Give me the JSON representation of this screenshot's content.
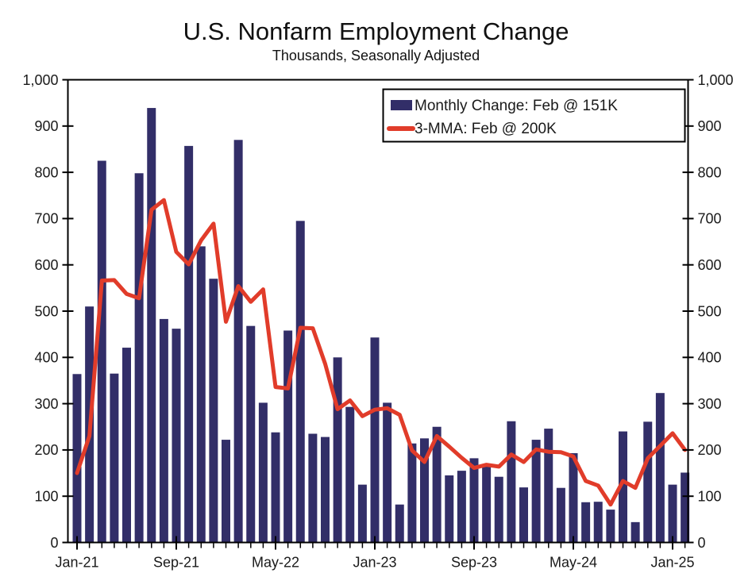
{
  "page": {
    "background": "#ffffff"
  },
  "chart_data": {
    "type": "bar",
    "title": "U.S. Nonfarm Employment Change",
    "subtitle": "Thousands, Seasonally Adjusted",
    "grid": false,
    "legend_position": "top-right",
    "ylim": [
      0,
      1000
    ],
    "y_tick_values": [
      0,
      100,
      200,
      300,
      400,
      500,
      600,
      700,
      800,
      900,
      1000
    ],
    "y_tick_labels": [
      "0",
      "100",
      "200",
      "300",
      "400",
      "500",
      "600",
      "700",
      "800",
      "900",
      "1,000"
    ],
    "x_major_ticks": [
      {
        "index": 0,
        "label": "Jan-21"
      },
      {
        "index": 8,
        "label": "Sep-21"
      },
      {
        "index": 16,
        "label": "May-22"
      },
      {
        "index": 24,
        "label": "Jan-23"
      },
      {
        "index": 32,
        "label": "Sep-23"
      },
      {
        "index": 40,
        "label": "May-24"
      },
      {
        "index": 48,
        "label": "Jan-25"
      }
    ],
    "categories": [
      "Jan-21",
      "Feb-21",
      "Mar-21",
      "Apr-21",
      "May-21",
      "Jun-21",
      "Jul-21",
      "Aug-21",
      "Sep-21",
      "Oct-21",
      "Nov-21",
      "Dec-21",
      "Jan-22",
      "Feb-22",
      "Mar-22",
      "Apr-22",
      "May-22",
      "Jun-22",
      "Jul-22",
      "Aug-22",
      "Sep-22",
      "Oct-22",
      "Nov-22",
      "Dec-22",
      "Jan-23",
      "Feb-23",
      "Mar-23",
      "Apr-23",
      "May-23",
      "Jun-23",
      "Jul-23",
      "Aug-23",
      "Sep-23",
      "Oct-23",
      "Nov-23",
      "Dec-23",
      "Jan-24",
      "Feb-24",
      "Mar-24",
      "Apr-24",
      "May-24",
      "Jun-24",
      "Jul-24",
      "Aug-24",
      "Sep-24",
      "Oct-24",
      "Nov-24",
      "Dec-24",
      "Jan-25",
      "Feb-25"
    ],
    "series": [
      {
        "name": "Monthly Change: Feb @ 151K",
        "type": "bar",
        "color": "#322e68",
        "values": [
          364,
          510,
          825,
          365,
          421,
          798,
          939,
          483,
          462,
          857,
          640,
          570,
          222,
          870,
          468,
          302,
          238,
          458,
          695,
          235,
          228,
          400,
          293,
          125,
          443,
          302,
          82,
          214,
          225,
          250,
          145,
          155,
          182,
          167,
          142,
          262,
          119,
          222,
          246,
          118,
          193,
          87,
          88,
          71,
          240,
          44,
          261,
          323,
          125,
          151
        ]
      },
      {
        "name": "3-MMA: Feb @ 200K",
        "type": "line",
        "color": "#e13c2a",
        "values": [
          150,
          230,
          566,
          567,
          537,
          528,
          719,
          740,
          628,
          601,
          653,
          689,
          477,
          554,
          520,
          547,
          336,
          333,
          464,
          463,
          386,
          288,
          307,
          273,
          287,
          290,
          276,
          199,
          174,
          230,
          207,
          183,
          161,
          168,
          164,
          190,
          174,
          201,
          196,
          195,
          186,
          133,
          123,
          82,
          133,
          118,
          182,
          209,
          236,
          200
        ]
      }
    ],
    "axes_color": "#000000",
    "text_color": "#1a1a1a"
  }
}
